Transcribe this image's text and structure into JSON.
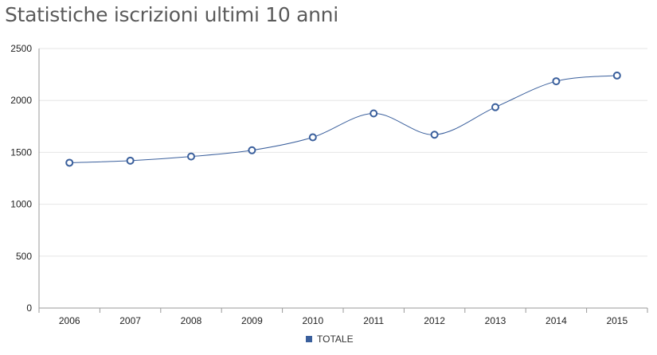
{
  "title": "Statistiche iscrizioni ultimi 10 anni",
  "colors": {
    "series": "#3a5f9c",
    "grid": "#e6e6e6",
    "axis": "#999999",
    "marker_fill": "#ffffff"
  },
  "chart_data": {
    "type": "line",
    "title": "Statistiche iscrizioni ultimi 10 anni",
    "xlabel": "",
    "ylabel": "",
    "categories": [
      "2006",
      "2007",
      "2008",
      "2009",
      "2010",
      "2011",
      "2012",
      "2013",
      "2014",
      "2015"
    ],
    "series": [
      {
        "name": "TOTALE",
        "values": [
          1400,
          1420,
          1460,
          1520,
          1645,
          1875,
          1670,
          1935,
          2185,
          2240
        ]
      }
    ],
    "ylim": [
      0,
      2500
    ],
    "yticks": [
      "0",
      "500",
      "1000",
      "1500",
      "2000",
      "2500"
    ],
    "grid": true,
    "smooth": true,
    "legend_position": "bottom-center"
  }
}
